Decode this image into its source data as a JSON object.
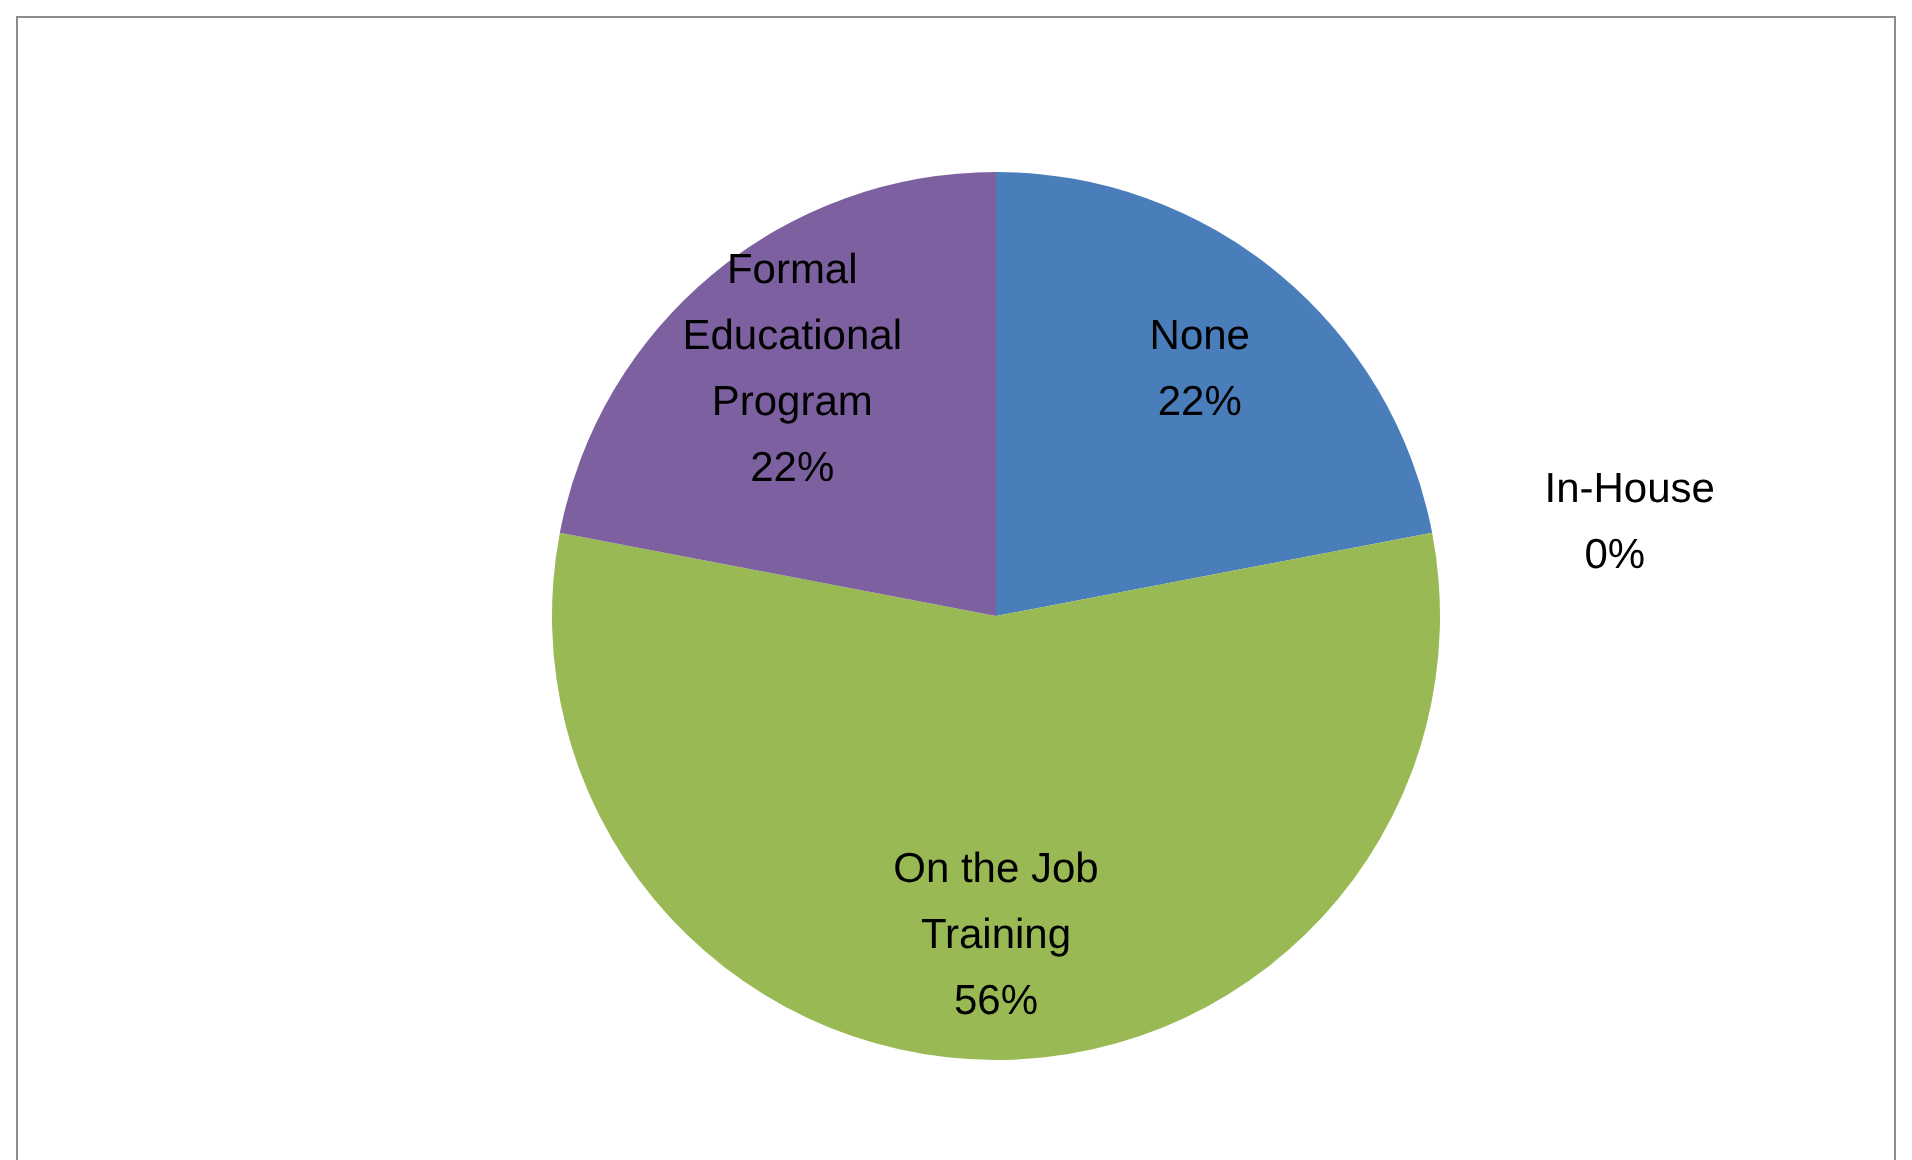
{
  "chart_data": {
    "type": "pie",
    "categories": [
      "None",
      "In-House",
      "On the Job Training",
      "Formal Educational Program"
    ],
    "values": [
      22,
      0,
      56,
      22
    ],
    "colors": [
      "#4a7ebb",
      "#be4b48",
      "#98b954",
      "#7d60a0"
    ],
    "value_labels": [
      "22%",
      "0%",
      "56%",
      "22%"
    ]
  }
}
